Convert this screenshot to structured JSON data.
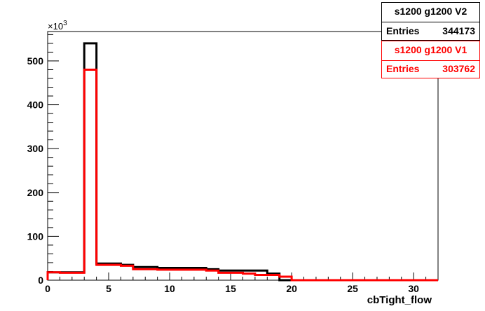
{
  "chart_data": {
    "type": "histogram",
    "title": "",
    "xlabel": "cbTight_flow",
    "ylabel": "",
    "y_multiplier_label": "×10",
    "y_multiplier_exp": "3",
    "xlim": [
      0,
      32
    ],
    "ylim": [
      0,
      567
    ],
    "x_ticks": [
      0,
      5,
      10,
      15,
      20,
      25,
      30
    ],
    "y_ticks": [
      0,
      100,
      200,
      300,
      400,
      500
    ],
    "bin_edges": [
      0,
      1,
      2,
      3,
      4,
      5,
      6,
      7,
      8,
      9,
      10,
      11,
      12,
      13,
      14,
      15,
      16,
      17,
      18,
      19,
      20,
      21,
      22,
      23,
      24,
      25,
      26,
      27,
      28,
      29,
      30,
      31,
      32
    ],
    "series": [
      {
        "name": "s1200 g1200 V2",
        "color": "#000000",
        "values": [
          18,
          18,
          18,
          540,
          38,
          38,
          35,
          30,
          30,
          28,
          28,
          28,
          28,
          25,
          22,
          22,
          22,
          22,
          15,
          0,
          0,
          0,
          0,
          0,
          0,
          0,
          0,
          0,
          0,
          0,
          0,
          0
        ]
      },
      {
        "name": "s1200 g1200 V1",
        "color": "#ff0000",
        "values": [
          18,
          17,
          17,
          480,
          35,
          35,
          33,
          25,
          25,
          24,
          24,
          24,
          24,
          22,
          17,
          17,
          15,
          12,
          12,
          8,
          0,
          0,
          0,
          0,
          0,
          0,
          0,
          0,
          0,
          0,
          0,
          0
        ]
      }
    ]
  },
  "stats": {
    "v2": {
      "name": "s1200 g1200 V2",
      "entries_label": "Entries",
      "entries_value": "344173",
      "color": "#000000"
    },
    "v1": {
      "name": "s1200 g1200 V1",
      "entries_label": "Entries",
      "entries_value": "303762",
      "color": "#ff0000"
    }
  }
}
